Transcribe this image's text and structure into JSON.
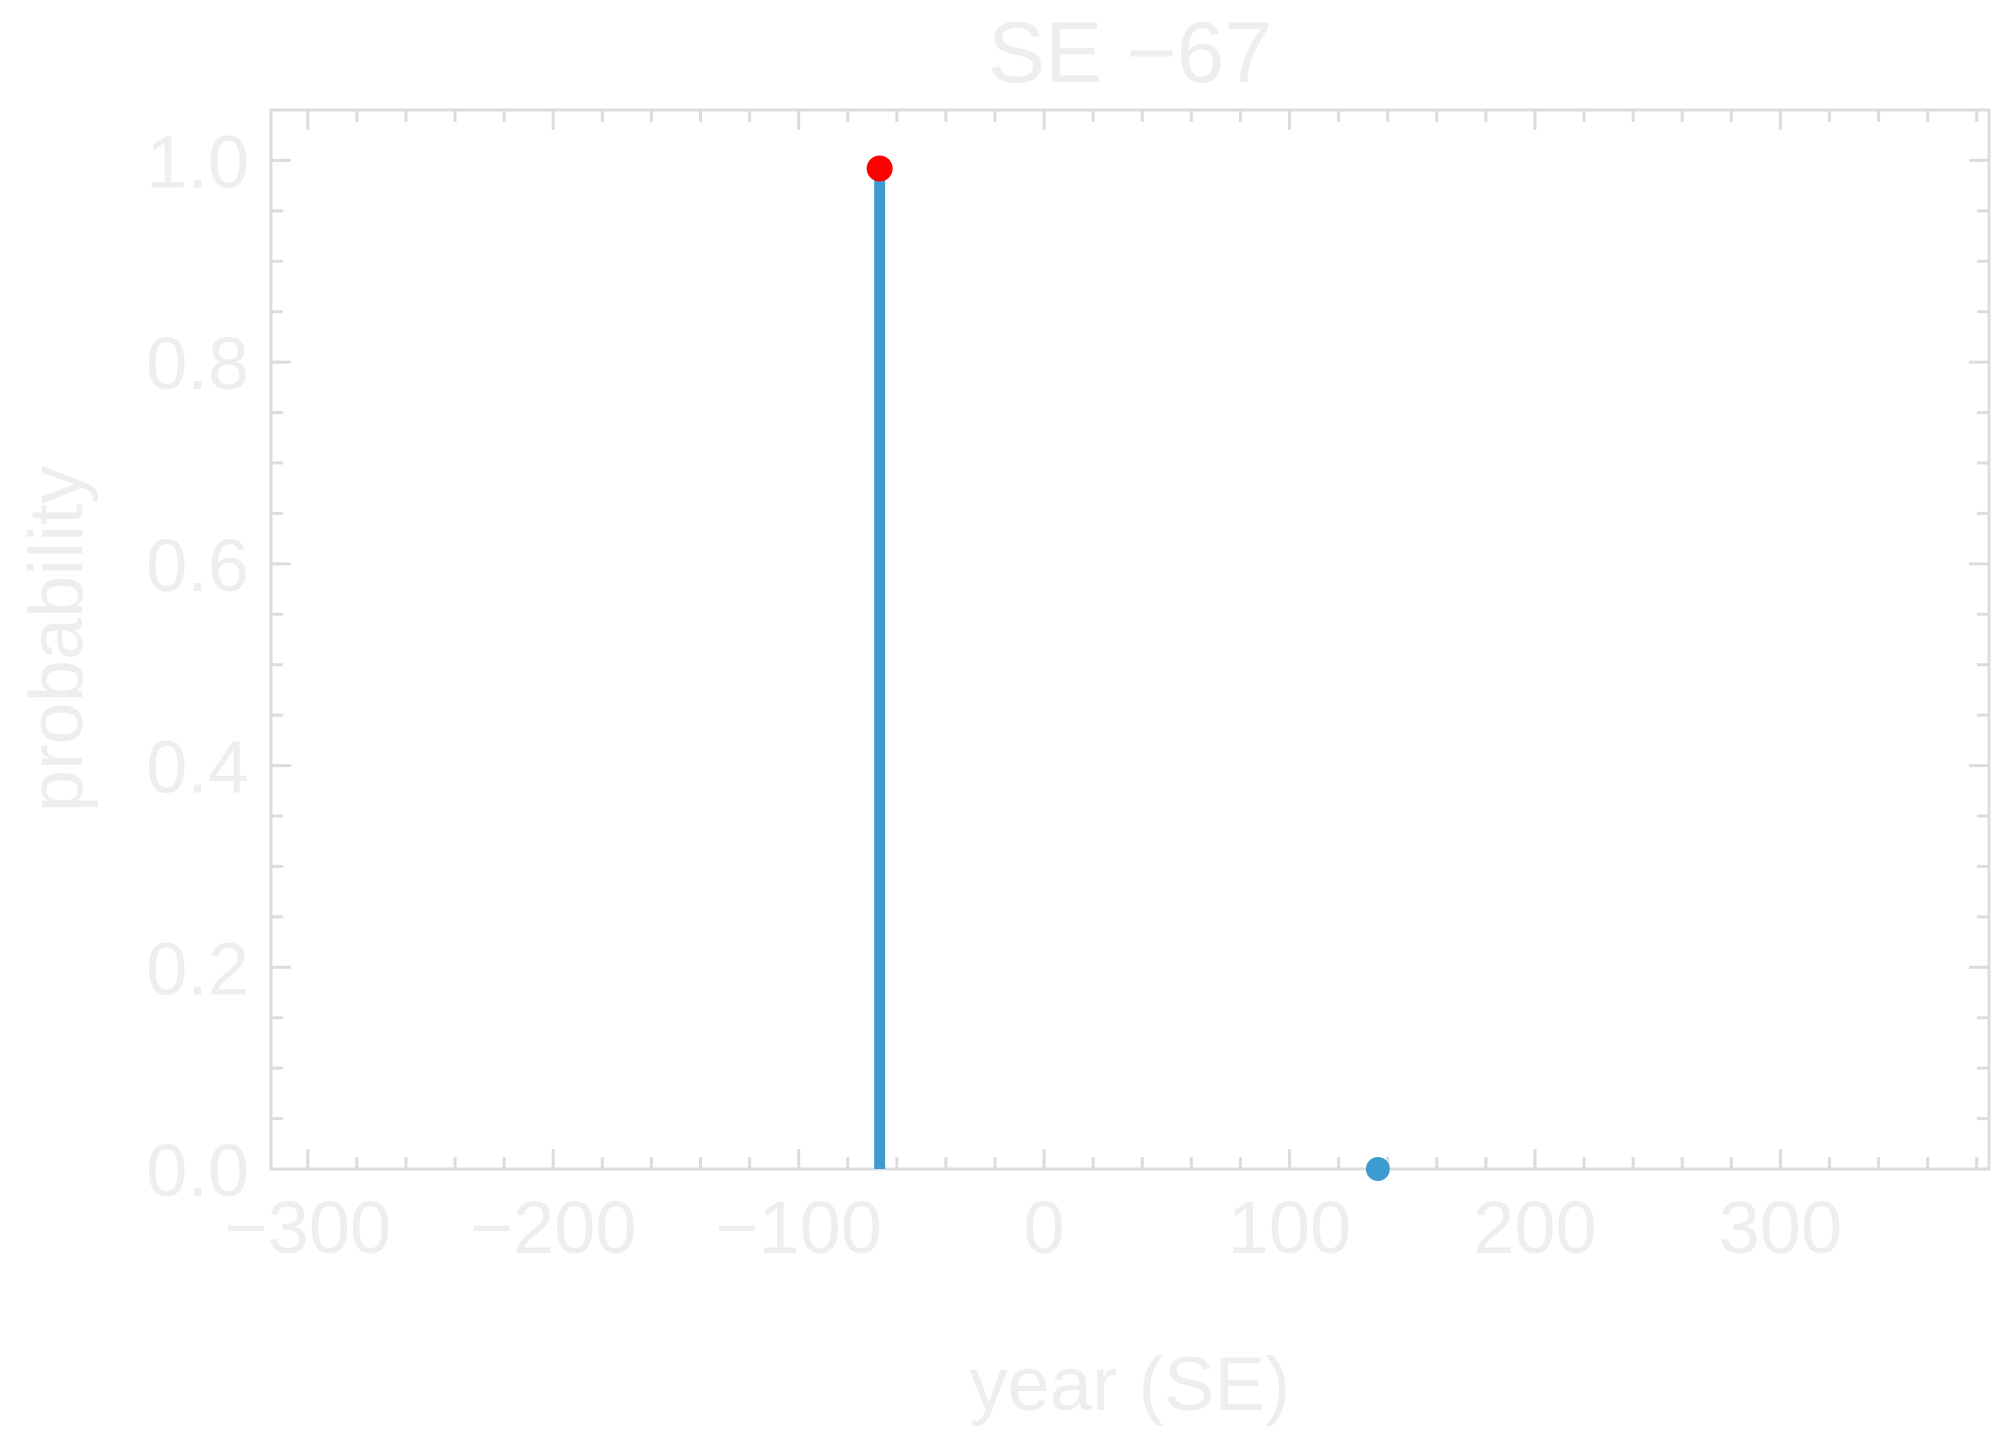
{
  "chart_data": {
    "type": "scatter",
    "title": "SE −67",
    "xlabel": "year (SE)",
    "ylabel": "probability",
    "xlim": [
      -315,
      385
    ],
    "ylim": [
      0,
      1.05
    ],
    "x_ticks": [
      -300,
      -200,
      -100,
      0,
      100,
      200,
      300
    ],
    "x_tick_labels": [
      "−300",
      "−200",
      "−100",
      "0",
      "100",
      "200",
      "300"
    ],
    "y_ticks": [
      0.0,
      0.2,
      0.4,
      0.6,
      0.8,
      1.0
    ],
    "y_tick_labels": [
      "0.0",
      "0.2",
      "0.4",
      "0.6",
      "0.8",
      "1.0"
    ],
    "grid": false,
    "series": [
      {
        "color": "#3e9bd0",
        "style": "stem",
        "points": [
          {
            "x": -67,
            "y": 0.992
          },
          {
            "x": 136,
            "y": 0.0
          }
        ]
      }
    ],
    "highlight": {
      "x": -67,
      "y": 0.992,
      "color": "#ff0000"
    }
  }
}
